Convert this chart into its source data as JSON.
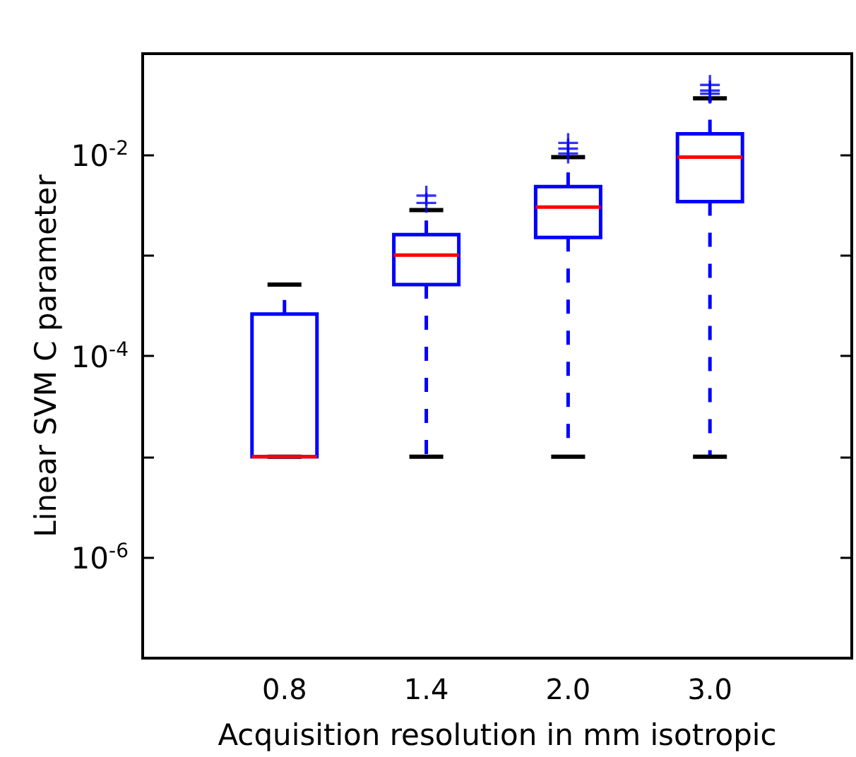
{
  "chart_data": {
    "type": "box",
    "xlabel": "Acquisition resolution in mm isotropic",
    "ylabel": "Linear SVM C parameter",
    "categories": [
      "0.8",
      "1.4",
      "2.0",
      "3.0"
    ],
    "series": [
      {
        "color": "#0000ff",
        "boxes": [
          {
            "low": 1e-05,
            "q1": 1e-05,
            "median": 1e-05,
            "q3": 0.00026,
            "high": 0.00051
          },
          {
            "low": 1e-05,
            "q1": 0.00051,
            "median": 0.001,
            "q3": 0.0016,
            "high": 0.0028,
            "outliers": [
              0.0033,
              0.0039
            ]
          },
          {
            "low": 1e-05,
            "q1": 0.0015,
            "median": 0.003,
            "q3": 0.0048,
            "high": 0.0094,
            "outliers": [
              0.0102,
              0.0114,
              0.013
            ]
          },
          {
            "low": 1e-05,
            "q1": 0.0034,
            "median": 0.0094,
            "q3": 0.016,
            "high": 0.036,
            "outliers": [
              0.04,
              0.043,
              0.049
            ]
          }
        ]
      }
    ],
    "log": "y",
    "ylim": [
      1e-07,
      0.1
    ],
    "yticks": [
      {
        "value": 1e-07,
        "label": null
      },
      {
        "value": 1e-06,
        "label": "10$^{-6}$"
      },
      {
        "value": 1e-05,
        "label": null
      },
      {
        "value": 0.0001,
        "label": "10$^{-4}$"
      },
      {
        "value": 0.001,
        "label": null
      },
      {
        "value": 0.01,
        "label": "10$^{-2}$"
      },
      {
        "value": 0.1,
        "label": null
      }
    ],
    "grid": false
  }
}
